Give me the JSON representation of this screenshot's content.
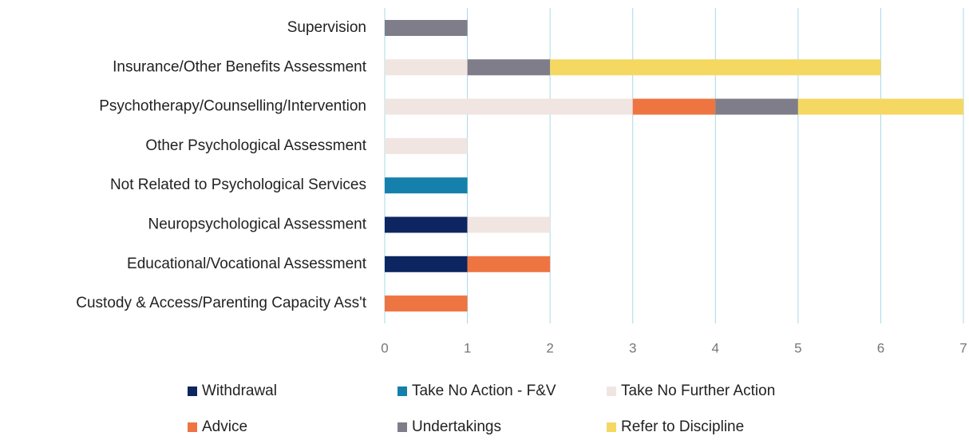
{
  "chart_data": {
    "type": "stacked-barh",
    "categories": [
      "Supervision",
      "Insurance/Other Benefits Assessment",
      "Psychotherapy/Counselling/Intervention",
      "Other Psychological Assessment",
      "Not Related to Psychological Services",
      "Neuropsychological Assessment",
      "Educational/Vocational Assessment",
      "Custody & Access/Parenting Capacity Ass't"
    ],
    "series": [
      {
        "name": "Withdrawal",
        "color": "#0d2560",
        "values": [
          0,
          0,
          0,
          0,
          0,
          1,
          1,
          0
        ]
      },
      {
        "name": "Take No Action - F&V",
        "color": "#1580ac",
        "values": [
          0,
          0,
          0,
          0,
          1,
          0,
          0,
          0
        ]
      },
      {
        "name": "Take No Further Action",
        "color": "#f1e5e1",
        "values": [
          0,
          1,
          3,
          1,
          0,
          1,
          0,
          0
        ]
      },
      {
        "name": "Advice",
        "color": "#ee7541",
        "values": [
          0,
          0,
          1,
          0,
          0,
          0,
          1,
          1
        ]
      },
      {
        "name": "Undertakings",
        "color": "#7f7d89",
        "values": [
          1,
          1,
          1,
          0,
          0,
          0,
          0,
          0
        ]
      },
      {
        "name": "Refer to Discipline",
        "color": "#f5d862",
        "values": [
          0,
          4,
          2,
          0,
          0,
          0,
          0,
          0
        ]
      }
    ],
    "xlim": [
      0,
      7
    ],
    "xticks": [
      0,
      1,
      2,
      3,
      4,
      5,
      6,
      7
    ],
    "grid": true
  }
}
